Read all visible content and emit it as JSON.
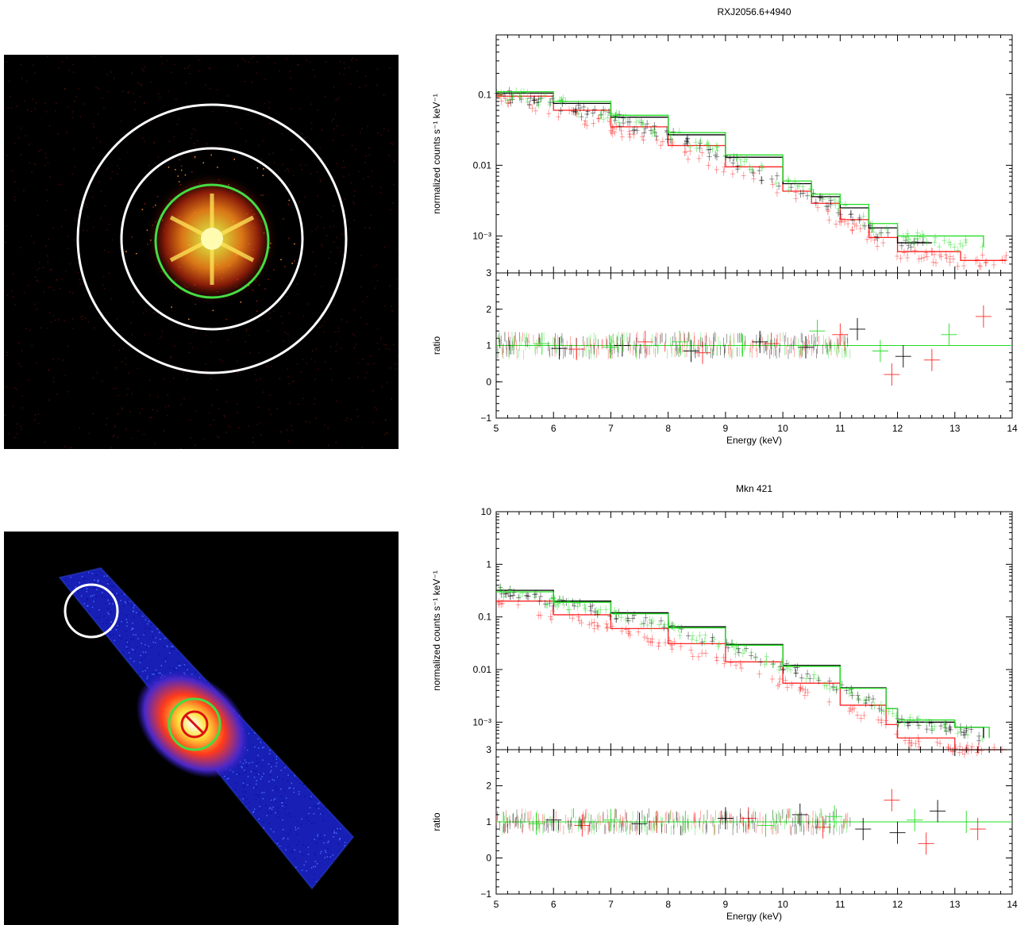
{
  "images": [
    {
      "description": "X-ray image with source and background annuli",
      "palette": "heat",
      "regions": [
        {
          "shape": "circle",
          "color": "#44dd44",
          "role": "source"
        },
        {
          "shape": "annulus",
          "color": "#ffffff",
          "role": "background"
        }
      ]
    },
    {
      "description": "X-ray image with piled-up core exclusion",
      "palette": "heat-blue",
      "regions": [
        {
          "shape": "circle",
          "color": "#ffffff",
          "role": "background"
        },
        {
          "shape": "circle",
          "color": "#44dd44",
          "role": "source"
        },
        {
          "shape": "excluded-circle",
          "color": "#dd1111",
          "role": "excluded-core"
        }
      ]
    }
  ],
  "colors": {
    "black": "#000000",
    "red": "#ff2222",
    "green": "#22dd22"
  },
  "chart_data": [
    {
      "type": "line",
      "title": "RXJ2056.6+4940",
      "xlabel": "Energy (keV)",
      "xlim": [
        5,
        14
      ],
      "xticks": [
        "5",
        "6",
        "7",
        "8",
        "9",
        "10",
        "11",
        "12",
        "13",
        "14"
      ],
      "panels": [
        {
          "ylabel": "normalized counts s⁻¹ keV⁻¹",
          "yscale": "log",
          "ylim": [
            0.0003,
            0.7
          ],
          "yticks": [
            {
              "value": 0.1,
              "label": "0.1"
            },
            {
              "value": 0.01,
              "label": "0.01"
            },
            {
              "value": 0.001,
              "label": "10⁻³"
            }
          ],
          "series": [
            {
              "color": "black",
              "x": [
                5,
                6,
                7,
                8,
                9,
                10,
                10.5,
                11,
                11.5,
                12,
                12.6
              ],
              "y": [
                0.105,
                0.075,
                0.048,
                0.027,
                0.013,
                0.0055,
                0.0036,
                0.0025,
                0.0013,
                0.0008,
                0.0008
              ]
            },
            {
              "color": "green",
              "x": [
                5,
                6,
                7,
                8,
                9,
                10,
                10.5,
                11,
                11.5,
                12,
                13.5
              ],
              "y": [
                0.11,
                0.08,
                0.051,
                0.029,
                0.014,
                0.006,
                0.0039,
                0.0028,
                0.0015,
                0.001,
                0.0007
              ]
            },
            {
              "color": "red",
              "x": [
                5,
                6,
                7,
                8,
                9,
                10,
                10.5,
                11,
                11.5,
                12,
                13.1,
                13.9
              ],
              "y": [
                0.095,
                0.06,
                0.035,
                0.019,
                0.0095,
                0.0043,
                0.0029,
                0.0017,
                0.00095,
                0.0006,
                0.00045,
                0.00045
              ]
            }
          ]
        },
        {
          "ylabel": "ratio",
          "yscale": "linear",
          "ylim": [
            -1,
            3
          ],
          "yticks": [
            {
              "value": -1,
              "label": "−1"
            },
            {
              "value": 0,
              "label": "0"
            },
            {
              "value": 1,
              "label": "1"
            },
            {
              "value": 2,
              "label": "2"
            },
            {
              "value": 3,
              "label": "3"
            }
          ],
          "series": [
            {
              "color": "black",
              "x": [
                6.1,
                7.2,
                8.4,
                9.6,
                10.4,
                11.3,
                12.1
              ],
              "y": [
                0.92,
                1.0,
                0.85,
                1.1,
                0.95,
                1.45,
                0.7
              ]
            },
            {
              "color": "green",
              "x": [
                5.8,
                7.0,
                8.2,
                9.3,
                10.6,
                11.7,
                12.9
              ],
              "y": [
                1.05,
                0.95,
                1.1,
                1.0,
                1.4,
                0.85,
                1.3
              ]
            },
            {
              "color": "red",
              "x": [
                6.4,
                7.6,
                8.6,
                9.8,
                11.0,
                11.9,
                12.6,
                13.5
              ],
              "y": [
                0.9,
                1.1,
                0.8,
                1.05,
                1.3,
                0.2,
                0.6,
                1.8
              ]
            }
          ],
          "reference": 1
        }
      ]
    },
    {
      "type": "line",
      "title": "Mkn 421",
      "xlabel": "Energy (keV)",
      "xlim": [
        5,
        14
      ],
      "xticks": [
        "5",
        "6",
        "7",
        "8",
        "9",
        "10",
        "11",
        "12",
        "13",
        "14"
      ],
      "panels": [
        {
          "ylabel": "normalized counts s⁻¹ keV⁻¹",
          "yscale": "log",
          "ylim": [
            0.0003,
            10
          ],
          "yticks": [
            {
              "value": 10,
              "label": "10"
            },
            {
              "value": 1,
              "label": "1"
            },
            {
              "value": 0.1,
              "label": "0.1"
            },
            {
              "value": 0.01,
              "label": "0.01"
            },
            {
              "value": 0.001,
              "label": "10⁻³"
            }
          ],
          "series": [
            {
              "color": "black",
              "x": [
                5,
                6,
                7,
                8,
                9,
                10,
                11,
                11.8,
                12,
                13,
                13.5
              ],
              "y": [
                0.32,
                0.2,
                0.12,
                0.065,
                0.03,
                0.012,
                0.0045,
                0.0018,
                0.001,
                0.0008,
                0.0005
              ]
            },
            {
              "color": "green",
              "x": [
                5,
                6,
                7,
                8,
                9,
                10,
                11,
                11.8,
                12,
                13,
                13.6
              ],
              "y": [
                0.3,
                0.19,
                0.115,
                0.062,
                0.029,
                0.0115,
                0.0044,
                0.0018,
                0.0011,
                0.0008,
                0.0005
              ]
            },
            {
              "color": "red",
              "x": [
                5,
                6,
                7,
                8,
                9,
                10,
                11,
                11.8,
                12,
                13,
                13.9
              ],
              "y": [
                0.2,
                0.11,
                0.06,
                0.031,
                0.014,
                0.0055,
                0.0021,
                0.0009,
                0.0005,
                0.0003,
                0.0003
              ]
            }
          ]
        },
        {
          "ylabel": "ratio",
          "yscale": "linear",
          "ylim": [
            -1,
            3
          ],
          "yticks": [
            {
              "value": -1,
              "label": "−1"
            },
            {
              "value": 0,
              "label": "0"
            },
            {
              "value": 1,
              "label": "1"
            },
            {
              "value": 2,
              "label": "2"
            },
            {
              "value": 3,
              "label": "3"
            }
          ],
          "series": [
            {
              "color": "black",
              "x": [
                6.0,
                7.5,
                9.0,
                10.3,
                11.4,
                12.0,
                12.7
              ],
              "y": [
                1.05,
                0.95,
                1.1,
                1.2,
                0.8,
                0.7,
                1.3
              ]
            },
            {
              "color": "green",
              "x": [
                5.7,
                7.0,
                8.3,
                9.7,
                10.9,
                12.3,
                13.2
              ],
              "y": [
                0.95,
                1.05,
                1.0,
                0.9,
                1.15,
                1.05,
                1.0
              ]
            },
            {
              "color": "red",
              "x": [
                6.5,
                7.8,
                9.4,
                10.7,
                11.9,
                12.5,
                13.4
              ],
              "y": [
                0.9,
                1.0,
                1.1,
                0.85,
                1.6,
                0.4,
                0.8
              ]
            }
          ],
          "reference": 1
        }
      ]
    }
  ]
}
